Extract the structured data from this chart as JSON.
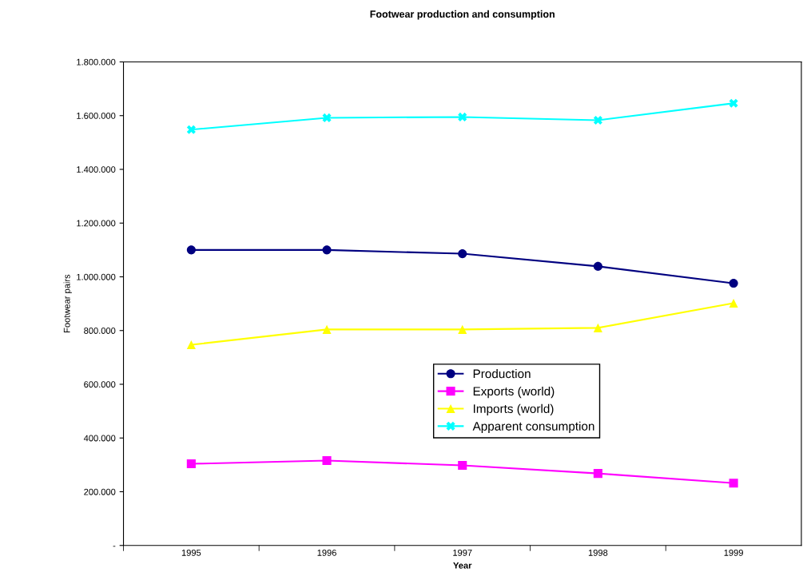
{
  "chart_data": {
    "type": "line",
    "title": "Footwear production and consumption",
    "xlabel": "Year",
    "ylabel": "Footwear pairs",
    "categories": [
      "1995",
      "1996",
      "1997",
      "1998",
      "1999"
    ],
    "series": [
      {
        "name": "Production",
        "color": "#000080",
        "marker": "circle",
        "values": [
          1100000,
          1100000,
          1086000,
          1039000,
          976000
        ]
      },
      {
        "name": "Exports (world)",
        "color": "#ff00ff",
        "marker": "square",
        "values": [
          304000,
          316000,
          298000,
          268000,
          232000
        ]
      },
      {
        "name": "Imports (world)",
        "color": "#ffff00",
        "marker": "triangle",
        "values": [
          747000,
          804000,
          804000,
          810000,
          902000
        ]
      },
      {
        "name": "Apparent consumption",
        "color": "#00ffff",
        "marker": "cross",
        "values": [
          1548000,
          1592000,
          1595000,
          1583000,
          1646000
        ]
      }
    ],
    "ylim": [
      0,
      1800000
    ],
    "yticks": [
      {
        "value": 0,
        "label": "-"
      },
      {
        "value": 200000,
        "label": "200.000"
      },
      {
        "value": 400000,
        "label": "400.000"
      },
      {
        "value": 600000,
        "label": "600.000"
      },
      {
        "value": 800000,
        "label": "800.000"
      },
      {
        "value": 1000000,
        "label": "1.000.000"
      },
      {
        "value": 1200000,
        "label": "1.200.000"
      },
      {
        "value": 1400000,
        "label": "1.400.000"
      },
      {
        "value": 1600000,
        "label": "1.600.000"
      },
      {
        "value": 1800000,
        "label": "1.800.000"
      }
    ],
    "grid": false,
    "legend": "bottom"
  }
}
